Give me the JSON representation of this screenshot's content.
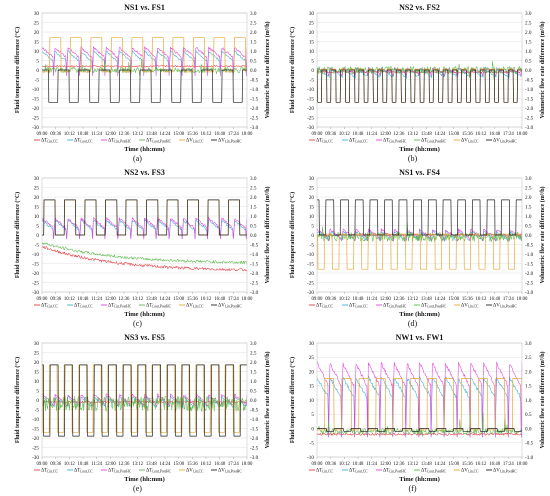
{
  "figure": {
    "panels": [
      {
        "id": "a",
        "letter": "(a)",
        "title": "NS1 vs. FS1"
      },
      {
        "id": "b",
        "letter": "(b)",
        "title": "NS2 vs. FS2"
      },
      {
        "id": "c",
        "letter": "(c)",
        "title": "NS2 vs. FS3"
      },
      {
        "id": "d",
        "letter": "(d)",
        "title": "NS1 vs. FS4"
      },
      {
        "id": "e",
        "letter": "(e)",
        "title": "NS3 vs. FS5"
      },
      {
        "id": "f",
        "letter": "(f)",
        "title": "NW1 vs. FW1"
      }
    ]
  },
  "chart_data": [
    {
      "type": "line",
      "panel": "(a)",
      "title": "NS1 vs. FS1",
      "xlabel": "Time (hh:mm)",
      "ylabel": "Fluid temperature difference (°C)",
      "y2label": "Volumetric flow rate difference (m³/h)",
      "x_ticks": [
        "09:00",
        "09:36",
        "10:12",
        "10:48",
        "11:24",
        "12:00",
        "12:36",
        "13:12",
        "13:48",
        "14:24",
        "15:00",
        "15:36",
        "16:12",
        "16:48",
        "17:24",
        "18:00"
      ],
      "ylim": [
        -30,
        30
      ],
      "y_ticks": [
        -30,
        -25,
        -20,
        -15,
        -10,
        -5,
        0,
        5,
        10,
        15,
        20,
        25,
        30
      ],
      "y2lim": [
        -3.0,
        3.0
      ],
      "y2_ticks": [
        -3.0,
        -2.5,
        -2.0,
        -1.5,
        -1.0,
        -0.5,
        0.0,
        0.5,
        1.0,
        1.5,
        2.0,
        2.5,
        3.0
      ],
      "legend": [
        "ΔTf,in,CC",
        "ΔTf,out,CC",
        "ΔTf,in,PostHC",
        "ΔTf,out,PostHC",
        "ΔVf,in,CC",
        "ΔVf,in,PostHC"
      ],
      "series": [
        {
          "legend_index": 0,
          "color": "#e8383d",
          "behavior": "const",
          "values": [
            2
          ]
        },
        {
          "legend_index": 1,
          "color": "#3fb0d4",
          "behavior": "saw",
          "values": [
            4,
            10,
            -2,
            0.6
          ]
        },
        {
          "legend_index": 2,
          "color": "#e040e0",
          "behavior": "saw",
          "values": [
            6,
            12,
            -3,
            0.6
          ]
        },
        {
          "legend_index": 3,
          "color": "#5bb84a",
          "behavior": "noise",
          "values": [
            0,
            1.5
          ]
        },
        {
          "legend_index": 4,
          "color": "#e8a838",
          "behavior": "square",
          "values": [
            1.7,
            -0.1,
            10,
            0.62
          ]
        },
        {
          "legend_index": 5,
          "color": "#222222",
          "behavior": "square",
          "values": [
            0,
            -1.7,
            10,
            0.22
          ]
        }
      ]
    },
    {
      "type": "line",
      "panel": "(b)",
      "title": "NS2 vs. FS2",
      "xlabel": "Time (hh:mm)",
      "ylabel": "Fluid temperature difference (°C)",
      "y2label": "Volumetric flow rate difference (m³/h)",
      "x_ticks": [
        "09:00",
        "09:36",
        "10:12",
        "10:48",
        "11:24",
        "12:00",
        "12:36",
        "13:12",
        "13:48",
        "14:24",
        "15:00",
        "15:36",
        "16:12",
        "16:48",
        "17:24",
        "18:00"
      ],
      "ylim": [
        -30,
        30
      ],
      "y_ticks": [
        -30,
        -25,
        -20,
        -15,
        -10,
        -5,
        0,
        5,
        10,
        15,
        20,
        25,
        30
      ],
      "y2lim": [
        -3.0,
        3.0
      ],
      "y2_ticks": [
        -3.0,
        -2.5,
        -2.0,
        -1.5,
        -1.0,
        -0.5,
        0.0,
        0.5,
        1.0,
        1.5,
        2.0,
        2.5,
        3.0
      ],
      "legend": [
        "ΔTf,in,CC",
        "ΔTf,out,CC",
        "ΔTf,in,PostHC",
        "ΔTf,out,PostHC",
        "ΔVf,in,CC",
        "ΔVf,in,PostHC"
      ],
      "series": [
        {
          "legend_index": 0,
          "color": "#e8383d",
          "behavior": "const",
          "values": [
            -1
          ]
        },
        {
          "legend_index": 1,
          "color": "#3fb0d4",
          "behavior": "saw",
          "values": [
            -4,
            1,
            -3,
            0.6
          ]
        },
        {
          "legend_index": 2,
          "color": "#e040e0",
          "behavior": "saw",
          "values": [
            -2,
            1,
            -3,
            0.6
          ]
        },
        {
          "legend_index": 3,
          "color": "#5bb84a",
          "behavior": "noise",
          "values": [
            0,
            2.0
          ]
        },
        {
          "legend_index": 4,
          "color": "#e8a838",
          "behavior": "square",
          "values": [
            0.05,
            -1.7,
            22,
            0.5
          ]
        },
        {
          "legend_index": 5,
          "color": "#222222",
          "behavior": "square",
          "values": [
            0,
            -1.7,
            22,
            0.5
          ]
        }
      ]
    },
    {
      "type": "line",
      "panel": "(c)",
      "title": "NS2 vs. FS3",
      "xlabel": "Time (hh:mm)",
      "ylabel": "Fluid temperature difference (°C)",
      "y2label": "Volumetric flow rate difference (m³/h)",
      "x_ticks": [
        "09:00",
        "09:36",
        "10:12",
        "10:48",
        "11:24",
        "12:00",
        "12:36",
        "13:12",
        "13:48",
        "14:24",
        "15:00",
        "15:36",
        "16:12",
        "16:48",
        "17:24",
        "18:00"
      ],
      "ylim": [
        -30,
        30
      ],
      "y_ticks": [
        -30,
        -25,
        -20,
        -15,
        -10,
        -5,
        0,
        5,
        10,
        15,
        20,
        25,
        30
      ],
      "y2lim": [
        -3.0,
        3.0
      ],
      "y2_ticks": [
        -3.0,
        -2.5,
        -2.0,
        -1.5,
        -1.0,
        -0.5,
        0.0,
        0.5,
        1.0,
        1.5,
        2.0,
        2.5,
        3.0
      ],
      "legend": [
        "ΔTf,in,CC",
        "ΔTf,out,CC",
        "ΔTf,in,PostHC",
        "ΔTf,out,PostHC",
        "ΔVf,in,CC",
        "ΔVf,in,PostHC"
      ],
      "series": [
        {
          "legend_index": 0,
          "color": "#e8383d",
          "behavior": "decay",
          "values": [
            -6,
            -19
          ]
        },
        {
          "legend_index": 1,
          "color": "#3fb0d4",
          "behavior": "saw",
          "values": [
            2,
            8,
            -2,
            0.6
          ]
        },
        {
          "legend_index": 2,
          "color": "#e040e0",
          "behavior": "saw",
          "values": [
            3,
            9,
            -2,
            0.6
          ]
        },
        {
          "legend_index": 3,
          "color": "#5bb84a",
          "behavior": "decay",
          "values": [
            -4,
            -15
          ]
        },
        {
          "legend_index": 4,
          "color": "#e8a838",
          "behavior": "square",
          "values": [
            1.85,
            0.0,
            10,
            0.9
          ]
        },
        {
          "legend_index": 5,
          "color": "#222222",
          "behavior": "square",
          "values": [
            1.85,
            0.0,
            10,
            0.9
          ]
        }
      ]
    },
    {
      "type": "line",
      "panel": "(d)",
      "title": "NS1 vs. FS4",
      "xlabel": "Time (hh:mm)",
      "ylabel": "Fluid temperature difference (°C)",
      "y2label": "Volumetric flow rate difference (m³/h)",
      "x_ticks": [
        "09:00",
        "09:36",
        "10:12",
        "10:48",
        "11:24",
        "12:00",
        "12:36",
        "13:12",
        "13:48",
        "14:24",
        "15:00",
        "15:36",
        "16:12",
        "16:48",
        "17:24",
        "18:00"
      ],
      "ylim": [
        -30,
        30
      ],
      "y_ticks": [
        -30,
        -25,
        -20,
        -15,
        -10,
        -5,
        0,
        5,
        10,
        15,
        20,
        25,
        30
      ],
      "y2lim": [
        -3.0,
        3.0
      ],
      "y2_ticks": [
        -3.0,
        -2.5,
        -2.0,
        -1.5,
        -1.0,
        -0.5,
        0.0,
        0.5,
        1.0,
        1.5,
        2.0,
        2.5,
        3.0
      ],
      "legend": [
        "ΔTf,in,CC",
        "ΔTf,out,CC",
        "ΔTf,in,PostHC",
        "ΔTf,out,PostHC",
        "ΔVf,in,CC",
        "ΔVf,in,PostHC"
      ],
      "series": [
        {
          "legend_index": 0,
          "color": "#e8383d",
          "behavior": "const",
          "values": [
            0
          ]
        },
        {
          "legend_index": 1,
          "color": "#3fb0d4",
          "behavior": "saw",
          "values": [
            -3,
            2,
            -3,
            0.6
          ]
        },
        {
          "legend_index": 2,
          "color": "#e040e0",
          "behavior": "saw",
          "values": [
            -2,
            3,
            -3,
            0.6
          ]
        },
        {
          "legend_index": 3,
          "color": "#5bb84a",
          "behavior": "noise",
          "values": [
            -1,
            2.5
          ]
        },
        {
          "legend_index": 4,
          "color": "#e8a838",
          "behavior": "square",
          "values": [
            0.05,
            -1.8,
            14,
            0.5
          ]
        },
        {
          "legend_index": 5,
          "color": "#222222",
          "behavior": "square",
          "values": [
            1.85,
            0.0,
            14,
            0.4
          ]
        }
      ]
    },
    {
      "type": "line",
      "panel": "(e)",
      "title": "NS3 vs. FS5",
      "xlabel": "Time (hh:mm)",
      "ylabel": "Fluid temperature difference (°C)",
      "y2label": "Volumetric flow rate difference (m³/h)",
      "x_ticks": [
        "09:00",
        "09:36",
        "10:12",
        "10:48",
        "11:24",
        "12:00",
        "12:36",
        "13:12",
        "13:48",
        "14:24",
        "15:00",
        "15:36",
        "16:12",
        "16:48",
        "17:24",
        "18:00"
      ],
      "ylim": [
        -30,
        30
      ],
      "y_ticks": [
        -30,
        -25,
        -20,
        -15,
        -10,
        -5,
        0,
        5,
        10,
        15,
        20,
        25,
        30
      ],
      "y2lim": [
        -3.0,
        3.0
      ],
      "y2_ticks": [
        -3.0,
        -2.5,
        -2.0,
        -1.5,
        -1.0,
        -0.5,
        0.0,
        0.5,
        1.0,
        1.5,
        2.0,
        2.5,
        3.0
      ],
      "legend": [
        "ΔTf,in,CC",
        "ΔTf,out,CC",
        "ΔTf,in,PostHC",
        "ΔTf,out,PostHC",
        "ΔVf,in,CC",
        "ΔVf,in,PostHC"
      ],
      "series": [
        {
          "legend_index": 0,
          "color": "#e8383d",
          "behavior": "const",
          "values": [
            -1
          ]
        },
        {
          "legend_index": 1,
          "color": "#3fb0d4",
          "behavior": "saw",
          "values": [
            -4,
            2,
            -3,
            0.6
          ]
        },
        {
          "legend_index": 2,
          "color": "#e040e0",
          "behavior": "saw",
          "values": [
            -3,
            3,
            -3,
            0.6
          ]
        },
        {
          "legend_index": 3,
          "color": "#5bb84a",
          "behavior": "noise",
          "values": [
            -2,
            4.0
          ]
        },
        {
          "legend_index": 4,
          "color": "#e8a838",
          "behavior": "square",
          "values": [
            1.85,
            -1.7,
            14,
            0.5
          ]
        },
        {
          "legend_index": 5,
          "color": "#222222",
          "behavior": "square",
          "values": [
            1.85,
            -1.9,
            14,
            0.45
          ]
        }
      ]
    },
    {
      "type": "line",
      "panel": "(f)",
      "title": "NW1 vs. FW1",
      "xlabel": "Time (hh:mm)",
      "ylabel": "Fluid temperature difference (°C)",
      "y2label": "Volumetric flow rate difference (m³/h)",
      "x_ticks": [
        "09:00",
        "09:36",
        "10:12",
        "10:48",
        "11:24",
        "12:00",
        "12:36",
        "13:12",
        "13:48",
        "14:24",
        "15:00",
        "15:36",
        "16:12",
        "16:48",
        "17:24",
        "18:00"
      ],
      "ylim": [
        -10,
        30
      ],
      "y_ticks": [
        -10,
        -5,
        0,
        5,
        10,
        15,
        20,
        25,
        30
      ],
      "y2lim": [
        -1.0,
        3.0
      ],
      "y2_ticks": [
        -1.0,
        -0.5,
        0.0,
        0.5,
        1.0,
        1.5,
        2.0,
        2.5,
        3.0
      ],
      "legend": [
        "ΔTf,in,CC",
        "ΔTf,out,CC",
        "ΔTf,in,PostHC",
        "ΔTf,out,PostHC",
        "ΔVf,in,CC",
        "ΔVf,in,PostHC"
      ],
      "series": [
        {
          "legend_index": 0,
          "color": "#e8383d",
          "behavior": "const",
          "values": [
            -2
          ]
        },
        {
          "legend_index": 1,
          "color": "#3fb0d4",
          "behavior": "saw",
          "values": [
            10,
            18,
            -3,
            0.6
          ]
        },
        {
          "legend_index": 2,
          "color": "#e040e0",
          "behavior": "saw",
          "values": [
            14,
            23,
            -3,
            0.6
          ]
        },
        {
          "legend_index": 3,
          "color": "#5bb84a",
          "behavior": "noise",
          "values": [
            -1,
            1.0
          ]
        },
        {
          "legend_index": 4,
          "color": "#e8a838",
          "behavior": "square",
          "values": [
            1.75,
            -0.05,
            12,
            0.55
          ]
        },
        {
          "legend_index": 5,
          "color": "#222222",
          "behavior": "square",
          "values": [
            0,
            -0.1,
            12,
            0.0
          ]
        }
      ]
    }
  ]
}
